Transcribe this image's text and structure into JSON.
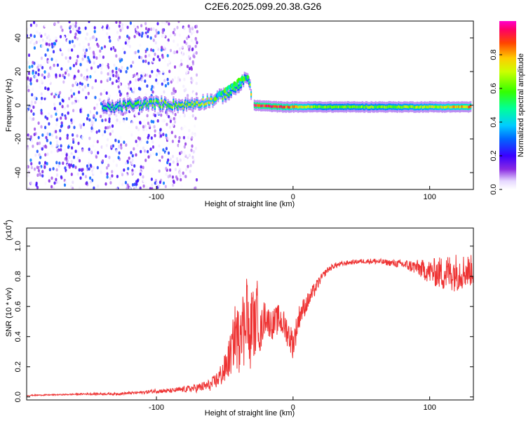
{
  "title": "C2E6.2025.099.20.38.G26",
  "chart_data": [
    {
      "type": "heatmap",
      "xlabel": "Height of straight line (km)",
      "ylabel": "Frequency (Hz)",
      "xlim": [
        -195,
        132
      ],
      "ylim": [
        -50,
        50
      ],
      "x_ticks": [
        -100,
        0,
        100
      ],
      "x_tick_labels": [
        "-100",
        "0",
        "100"
      ],
      "y_ticks": [
        -40,
        -20,
        0,
        20,
        40
      ],
      "y_tick_labels": [
        "-40",
        "-20",
        "0",
        "20",
        "40"
      ],
      "colorbar": {
        "label": "Normalized spectral amplitude",
        "range": [
          0,
          1
        ],
        "ticks": [
          0.0,
          0.2,
          0.4,
          0.6,
          0.8
        ],
        "tick_labels": [
          "0.0",
          "0.2",
          "0.4",
          "0.6",
          "0.8"
        ]
      },
      "noise_region_km": [
        -195,
        -80
      ],
      "signal_track": [
        {
          "x": -140,
          "f": -2,
          "amp": 0.45
        },
        {
          "x": -120,
          "f": 0,
          "amp": 0.55
        },
        {
          "x": -100,
          "f": 1,
          "amp": 0.6
        },
        {
          "x": -80,
          "f": 0,
          "amp": 0.6
        },
        {
          "x": -60,
          "f": 3,
          "amp": 0.7
        },
        {
          "x": -45,
          "f": 8,
          "amp": 0.55
        },
        {
          "x": -33,
          "f": 17,
          "amp": 0.5
        },
        {
          "x": -30,
          "f": 0,
          "amp": 0.9
        },
        {
          "x": -10,
          "f": -1,
          "amp": 0.85
        },
        {
          "x": 20,
          "f": -1,
          "amp": 0.6
        },
        {
          "x": 60,
          "f": -1,
          "amp": 0.6
        },
        {
          "x": 100,
          "f": -1,
          "amp": 0.65
        },
        {
          "x": 130,
          "f": -1,
          "amp": 0.8
        }
      ]
    },
    {
      "type": "line",
      "xlabel": "Height of straight line (km)",
      "ylabel": "SNR (10 * v/v)",
      "exponent_label": "(x10",
      "exponent_power": "4",
      "exponent_close": ")",
      "xlim": [
        -195,
        132
      ],
      "ylim": [
        -0.02,
        1.12
      ],
      "x_ticks": [
        -100,
        0,
        100
      ],
      "x_tick_labels": [
        "-100",
        "0",
        "100"
      ],
      "y_ticks": [
        0.0,
        0.2,
        0.4,
        0.6,
        0.8,
        1.0
      ],
      "y_tick_labels": [
        "0.0",
        "0.2",
        "0.4",
        "0.6",
        "0.8",
        "1.0"
      ],
      "series": [
        {
          "name": "SNR",
          "color": "#ee3333",
          "x": [
            -195,
            -170,
            -150,
            -130,
            -110,
            -100,
            -90,
            -80,
            -70,
            -60,
            -55,
            -50,
            -45,
            -42,
            -40,
            -38,
            -36,
            -34,
            -32,
            -30,
            -28,
            -26,
            -24,
            -22,
            -20,
            -18,
            -15,
            -10,
            -5,
            0,
            5,
            10,
            15,
            20,
            25,
            30,
            40,
            50,
            60,
            70,
            80,
            90,
            100,
            110,
            120,
            132
          ],
          "values": [
            0.01,
            0.015,
            0.02,
            0.02,
            0.03,
            0.04,
            0.04,
            0.05,
            0.06,
            0.08,
            0.12,
            0.18,
            0.3,
            0.45,
            0.35,
            0.6,
            0.4,
            0.7,
            0.3,
            0.55,
            0.45,
            0.6,
            0.4,
            0.5,
            0.55,
            0.5,
            0.48,
            0.52,
            0.45,
            0.35,
            0.55,
            0.62,
            0.7,
            0.78,
            0.84,
            0.87,
            0.89,
            0.9,
            0.9,
            0.89,
            0.88,
            0.86,
            0.83,
            0.82,
            0.83,
            0.84
          ],
          "noise": [
            0.004,
            0.004,
            0.006,
            0.008,
            0.01,
            0.015,
            0.015,
            0.02,
            0.03,
            0.04,
            0.06,
            0.1,
            0.15,
            0.2,
            0.25,
            0.3,
            0.25,
            0.3,
            0.2,
            0.25,
            0.2,
            0.2,
            0.15,
            0.12,
            0.12,
            0.1,
            0.1,
            0.1,
            0.1,
            0.1,
            0.08,
            0.06,
            0.05,
            0.03,
            0.02,
            0.02,
            0.015,
            0.015,
            0.02,
            0.02,
            0.03,
            0.05,
            0.08,
            0.12,
            0.13,
            0.1
          ]
        }
      ]
    }
  ]
}
